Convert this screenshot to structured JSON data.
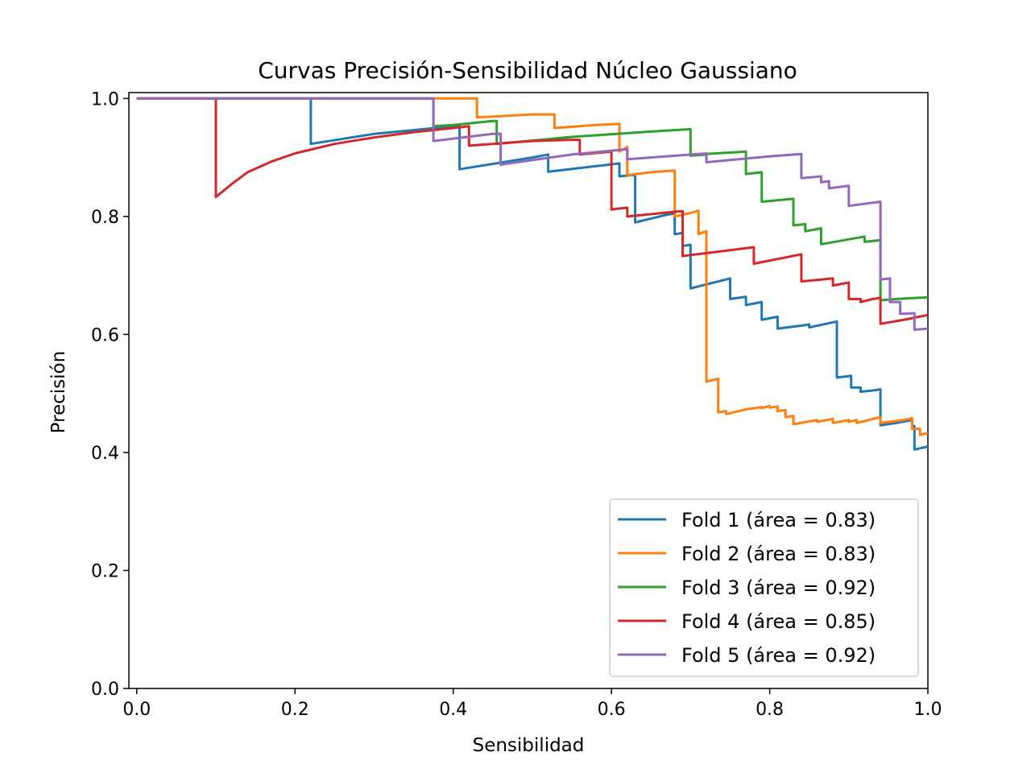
{
  "chart_data": {
    "type": "line",
    "title": "Curvas Precisión-Sensibilidad Núcleo Gaussiano",
    "xlabel": "Sensibilidad",
    "ylabel": "Precisión",
    "xlim": [
      -0.01,
      1.0
    ],
    "ylim": [
      0.0,
      1.01
    ],
    "xticks": [
      "0.0",
      "0.2",
      "0.4",
      "0.6",
      "0.8",
      "1.0"
    ],
    "yticks": [
      "0.0",
      "0.2",
      "0.4",
      "0.6",
      "0.8",
      "1.0"
    ],
    "grid": false,
    "legend_position": "lower-right",
    "series": [
      {
        "name": "Fold 1 (área = 0.83)",
        "color": "#1f77b4",
        "points": [
          [
            0,
            1
          ],
          [
            0.22,
            1
          ],
          [
            0.22,
            0.923
          ],
          [
            0.3,
            0.94
          ],
          [
            0.4,
            0.953
          ],
          [
            0.408,
            0.953
          ],
          [
            0.408,
            0.88
          ],
          [
            0.5,
            0.9
          ],
          [
            0.52,
            0.905
          ],
          [
            0.52,
            0.876
          ],
          [
            0.61,
            0.89
          ],
          [
            0.61,
            0.868
          ],
          [
            0.625,
            0.87
          ],
          [
            0.63,
            0.87
          ],
          [
            0.63,
            0.79
          ],
          [
            0.67,
            0.803
          ],
          [
            0.68,
            0.805
          ],
          [
            0.68,
            0.77
          ],
          [
            0.69,
            0.772
          ],
          [
            0.69,
            0.75
          ],
          [
            0.7,
            0.752
          ],
          [
            0.7,
            0.678
          ],
          [
            0.75,
            0.695
          ],
          [
            0.75,
            0.66
          ],
          [
            0.77,
            0.664
          ],
          [
            0.77,
            0.65
          ],
          [
            0.79,
            0.655
          ],
          [
            0.79,
            0.625
          ],
          [
            0.81,
            0.63
          ],
          [
            0.81,
            0.61
          ],
          [
            0.84,
            0.615
          ],
          [
            0.85,
            0.617
          ],
          [
            0.85,
            0.612
          ],
          [
            0.885,
            0.622
          ],
          [
            0.885,
            0.527
          ],
          [
            0.903,
            0.53
          ],
          [
            0.903,
            0.51
          ],
          [
            0.915,
            0.51
          ],
          [
            0.915,
            0.503
          ],
          [
            0.93,
            0.505
          ],
          [
            0.94,
            0.507
          ],
          [
            0.94,
            0.446
          ],
          [
            0.96,
            0.45
          ],
          [
            0.98,
            0.455
          ],
          [
            0.98,
            0.445
          ],
          [
            0.983,
            0.445
          ],
          [
            0.983,
            0.405
          ],
          [
            1.0,
            0.41
          ]
        ]
      },
      {
        "name": "Fold 2 (área = 0.83)",
        "color": "#ff7f0e",
        "points": [
          [
            0,
            1
          ],
          [
            0.43,
            1
          ],
          [
            0.43,
            0.968
          ],
          [
            0.5,
            0.973
          ],
          [
            0.528,
            0.973
          ],
          [
            0.528,
            0.95
          ],
          [
            0.58,
            0.955
          ],
          [
            0.61,
            0.957
          ],
          [
            0.61,
            0.91
          ],
          [
            0.62,
            0.918
          ],
          [
            0.62,
            0.87
          ],
          [
            0.65,
            0.875
          ],
          [
            0.68,
            0.878
          ],
          [
            0.68,
            0.8
          ],
          [
            0.7,
            0.806
          ],
          [
            0.71,
            0.81
          ],
          [
            0.71,
            0.77
          ],
          [
            0.72,
            0.775
          ],
          [
            0.72,
            0.52
          ],
          [
            0.735,
            0.525
          ],
          [
            0.735,
            0.468
          ],
          [
            0.745,
            0.47
          ],
          [
            0.745,
            0.465
          ],
          [
            0.77,
            0.473
          ],
          [
            0.79,
            0.477
          ],
          [
            0.79,
            0.475
          ],
          [
            0.8,
            0.479
          ],
          [
            0.8,
            0.476
          ],
          [
            0.81,
            0.478
          ],
          [
            0.81,
            0.47
          ],
          [
            0.82,
            0.472
          ],
          [
            0.82,
            0.46
          ],
          [
            0.83,
            0.462
          ],
          [
            0.83,
            0.448
          ],
          [
            0.86,
            0.455
          ],
          [
            0.86,
            0.452
          ],
          [
            0.88,
            0.457
          ],
          [
            0.88,
            0.45
          ],
          [
            0.9,
            0.455
          ],
          [
            0.9,
            0.452
          ],
          [
            0.91,
            0.455
          ],
          [
            0.91,
            0.45
          ],
          [
            0.94,
            0.46
          ],
          [
            0.94,
            0.45
          ],
          [
            0.97,
            0.455
          ],
          [
            0.98,
            0.458
          ],
          [
            0.98,
            0.44
          ],
          [
            0.99,
            0.44
          ],
          [
            0.99,
            0.43
          ],
          [
            1.0,
            0.433
          ]
        ]
      },
      {
        "name": "Fold 3 (área = 0.92)",
        "color": "#2ca02c",
        "points": [
          [
            0,
            1
          ],
          [
            0.375,
            1
          ],
          [
            0.375,
            0.953
          ],
          [
            0.4,
            0.955
          ],
          [
            0.45,
            0.962
          ],
          [
            0.455,
            0.962
          ],
          [
            0.455,
            0.923
          ],
          [
            0.55,
            0.935
          ],
          [
            0.65,
            0.944
          ],
          [
            0.7,
            0.948
          ],
          [
            0.7,
            0.903
          ],
          [
            0.72,
            0.905
          ],
          [
            0.72,
            0.906
          ],
          [
            0.77,
            0.91
          ],
          [
            0.77,
            0.872
          ],
          [
            0.79,
            0.875
          ],
          [
            0.79,
            0.825
          ],
          [
            0.83,
            0.83
          ],
          [
            0.83,
            0.785
          ],
          [
            0.845,
            0.787
          ],
          [
            0.845,
            0.775
          ],
          [
            0.865,
            0.78
          ],
          [
            0.865,
            0.753
          ],
          [
            0.92,
            0.766
          ],
          [
            0.92,
            0.757
          ],
          [
            0.94,
            0.76
          ],
          [
            0.94,
            0.658
          ],
          [
            0.96,
            0.66
          ],
          [
            1.0,
            0.663
          ]
        ]
      },
      {
        "name": "Fold 4 (área = 0.85)",
        "color": "#d62728",
        "points": [
          [
            0,
            1
          ],
          [
            0.1,
            1
          ],
          [
            0.1,
            0.833
          ],
          [
            0.12,
            0.855
          ],
          [
            0.14,
            0.875
          ],
          [
            0.17,
            0.893
          ],
          [
            0.2,
            0.907
          ],
          [
            0.25,
            0.923
          ],
          [
            0.3,
            0.934
          ],
          [
            0.35,
            0.943
          ],
          [
            0.4,
            0.95
          ],
          [
            0.42,
            0.953
          ],
          [
            0.42,
            0.92
          ],
          [
            0.5,
            0.928
          ],
          [
            0.55,
            0.93
          ],
          [
            0.56,
            0.93
          ],
          [
            0.56,
            0.905
          ],
          [
            0.6,
            0.91
          ],
          [
            0.6,
            0.812
          ],
          [
            0.62,
            0.815
          ],
          [
            0.62,
            0.8
          ],
          [
            0.68,
            0.808
          ],
          [
            0.69,
            0.809
          ],
          [
            0.69,
            0.733
          ],
          [
            0.78,
            0.748
          ],
          [
            0.78,
            0.72
          ],
          [
            0.84,
            0.736
          ],
          [
            0.84,
            0.69
          ],
          [
            0.88,
            0.695
          ],
          [
            0.88,
            0.683
          ],
          [
            0.9,
            0.688
          ],
          [
            0.9,
            0.66
          ],
          [
            0.915,
            0.66
          ],
          [
            0.915,
            0.655
          ],
          [
            0.93,
            0.66
          ],
          [
            0.94,
            0.662
          ],
          [
            0.94,
            0.618
          ],
          [
            0.97,
            0.625
          ],
          [
            1.0,
            0.633
          ]
        ]
      },
      {
        "name": "Fold 5 (área = 0.92)",
        "color": "#9467bd",
        "points": [
          [
            0,
            1
          ],
          [
            0.375,
            1
          ],
          [
            0.375,
            0.928
          ],
          [
            0.45,
            0.94
          ],
          [
            0.46,
            0.94
          ],
          [
            0.46,
            0.888
          ],
          [
            0.55,
            0.905
          ],
          [
            0.62,
            0.914
          ],
          [
            0.62,
            0.897
          ],
          [
            0.67,
            0.902
          ],
          [
            0.72,
            0.907
          ],
          [
            0.72,
            0.892
          ],
          [
            0.8,
            0.902
          ],
          [
            0.84,
            0.906
          ],
          [
            0.84,
            0.865
          ],
          [
            0.865,
            0.868
          ],
          [
            0.865,
            0.858
          ],
          [
            0.875,
            0.86
          ],
          [
            0.875,
            0.848
          ],
          [
            0.9,
            0.852
          ],
          [
            0.9,
            0.818
          ],
          [
            0.94,
            0.825
          ],
          [
            0.94,
            0.693
          ],
          [
            0.952,
            0.695
          ],
          [
            0.952,
            0.655
          ],
          [
            0.965,
            0.655
          ],
          [
            0.965,
            0.635
          ],
          [
            0.983,
            0.636
          ],
          [
            0.983,
            0.608
          ],
          [
            1.0,
            0.61
          ]
        ]
      }
    ]
  }
}
